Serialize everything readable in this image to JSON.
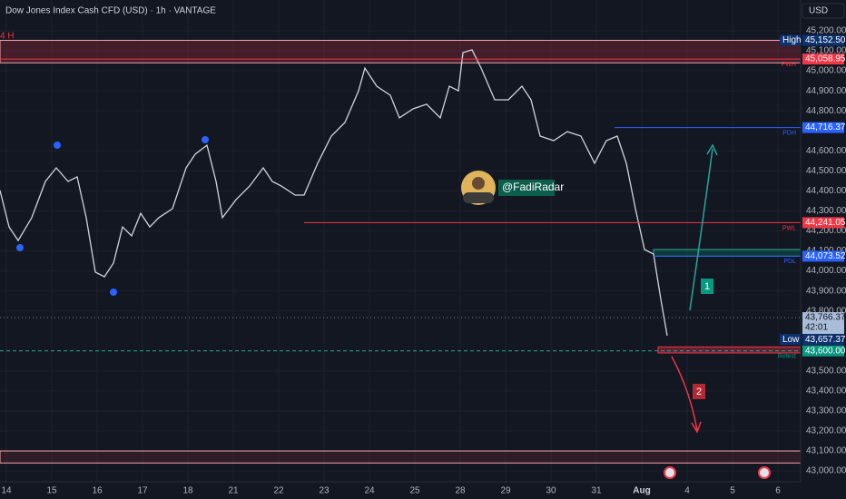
{
  "header": {
    "title": "Dow Jones Index Cash CFD (USD) · 1h · VANTAGE",
    "currency": "USD",
    "timeframe_note": "4 H"
  },
  "watermark": "@FadiRadar",
  "annotations": [
    "1",
    "2"
  ],
  "chart_data": {
    "type": "line",
    "x": [
      -0.14,
      0.06,
      0.26,
      0.56,
      0.86,
      1.1,
      1.36,
      1.56,
      1.76,
      1.96,
      2.16,
      2.36,
      2.56,
      2.76,
      2.96,
      3.16,
      3.36,
      3.66,
      3.96,
      4.16,
      4.42,
      4.62,
      4.76,
      5.06,
      5.36,
      5.66,
      5.86,
      6.06,
      6.36,
      6.56,
      6.86,
      7.16,
      7.46,
      7.76,
      7.9,
      8.16,
      8.46,
      8.66,
      8.96,
      9.26,
      9.56,
      9.76,
      9.96,
      10.06,
      10.26,
      10.46,
      10.76,
      11.06,
      11.36,
      11.56,
      11.76,
      12.06,
      12.36,
      12.66,
      12.96,
      13.22,
      13.46,
      13.66,
      13.86,
      14.06,
      14.26,
      14.42,
      14.56
    ],
    "values": [
      44402,
      44220,
      44152,
      44266,
      44447,
      44515,
      44447,
      44470,
      44266,
      43994,
      43971,
      44039,
      44220,
      44175,
      44288,
      44220,
      44266,
      44311,
      44515,
      44583,
      44628,
      44447,
      44266,
      44356,
      44424,
      44515,
      44447,
      44424,
      44379,
      44379,
      44538,
      44674,
      44742,
      44900,
      45014,
      44923,
      44878,
      44765,
      44810,
      44833,
      44765,
      44923,
      44900,
      45091,
      45105,
      45014,
      44855,
      44855,
      44923,
      44855,
      44674,
      44651,
      44696,
      44674,
      44538,
      44651,
      44674,
      44538,
      44311,
      44107,
      44084,
      43858,
      43676
    ],
    "color": "#d1d4dc",
    "xlim": [
      -0.14,
      17.5
    ],
    "xticks": [
      {
        "value": 0,
        "label": "14"
      },
      {
        "value": 1,
        "label": "15"
      },
      {
        "value": 2,
        "label": "16"
      },
      {
        "value": 3,
        "label": "17"
      },
      {
        "value": 4,
        "label": "18"
      },
      {
        "value": 5,
        "label": "21"
      },
      {
        "value": 6,
        "label": "22"
      },
      {
        "value": 7,
        "label": "23"
      },
      {
        "value": 8,
        "label": "24"
      },
      {
        "value": 9,
        "label": "25"
      },
      {
        "value": 10,
        "label": "28"
      },
      {
        "value": 11,
        "label": "29"
      },
      {
        "value": 12,
        "label": "30"
      },
      {
        "value": 13,
        "label": "31"
      },
      {
        "value": 14,
        "label": "Aug"
      },
      {
        "value": 15,
        "label": "4"
      },
      {
        "value": 16,
        "label": "5"
      },
      {
        "value": 17,
        "label": "6"
      }
    ],
    "ylim": [
      42946,
      45354
    ],
    "yticks": [
      {
        "value": 43000,
        "label": "43,000.00"
      },
      {
        "value": 43100,
        "label": "43,100.00"
      },
      {
        "value": 43200,
        "label": "43,200.00"
      },
      {
        "value": 43300,
        "label": "43,300.00"
      },
      {
        "value": 43400,
        "label": "43,400.00"
      },
      {
        "value": 43500,
        "label": "43,500.00"
      },
      {
        "value": 43800,
        "label": "43,800.00"
      },
      {
        "value": 43900,
        "label": "43,900.00"
      },
      {
        "value": 44000,
        "label": "44,000.00"
      },
      {
        "value": 44100,
        "label": "44,100.00"
      },
      {
        "value": 44200,
        "label": "44,200.00"
      },
      {
        "value": 44300,
        "label": "44,300.00"
      },
      {
        "value": 44400,
        "label": "44,400.00"
      },
      {
        "value": 44500,
        "label": "44,500.00"
      },
      {
        "value": 44600,
        "label": "44,600.00"
      },
      {
        "value": 44800,
        "label": "44,800.00"
      },
      {
        "value": 44900,
        "label": "44,900.00"
      },
      {
        "value": 45000,
        "label": "45,000.00"
      },
      {
        "value": 45100,
        "label": "45,100.00"
      },
      {
        "value": 45200,
        "label": "45,200.00"
      }
    ],
    "grid": true,
    "zones": [
      {
        "range": [
          45040,
          45152.5
        ],
        "x_start": -0.14,
        "fill": "rgba(242,54,69,0.22)",
        "stroke": "#f7a8ae"
      },
      {
        "range": [
          43040,
          43100
        ],
        "x_start": -0.14,
        "fill": "rgba(242,54,69,0.12)",
        "stroke": "#f7a8ae"
      },
      {
        "range": [
          44073.52,
          44107
        ],
        "x_start": 14.26,
        "fill": "rgba(8,153,129,0.25)",
        "stroke": "#26a69a"
      },
      {
        "range": [
          43590,
          43620
        ],
        "x_start": 14.36,
        "fill": "rgba(242,54,69,0.35)",
        "stroke": "#f23645"
      }
    ],
    "levels": [
      {
        "name": "High",
        "value": 45152.5,
        "label": "45,152.50",
        "color": "#0c3270",
        "tag": true
      },
      {
        "name": "PWH",
        "value": 45058.95,
        "label": "45,058.95",
        "color": "#f23645",
        "line": "#f23645",
        "x_start": -0.14
      },
      {
        "name": "PDH",
        "value": 44716.37,
        "label": "44,716.37",
        "color": "#2962ff",
        "line": "#2962ff",
        "x_start": 13.4
      },
      {
        "name": "PWL",
        "value": 44241.05,
        "label": "44,241.05",
        "color": "#f23645",
        "line": "#f23645",
        "x_start": 6.56
      },
      {
        "name": "PDL",
        "value": 44073.52,
        "label": "44,073.52",
        "color": "#2962ff",
        "line": "#2962ff",
        "x_start": 14.26
      },
      {
        "name": "Low",
        "value": 43657.37,
        "label": "43,657.37",
        "color": "#0c3270",
        "tag": true
      },
      {
        "name": "Retest",
        "value": 43600,
        "label": "43,600.00",
        "color": "#089981",
        "line": "#26a69a",
        "x_start": -0.14,
        "dash": true
      }
    ],
    "current": {
      "value": 43766.37,
      "label": "43,766.37",
      "countdown": "42:01"
    }
  }
}
